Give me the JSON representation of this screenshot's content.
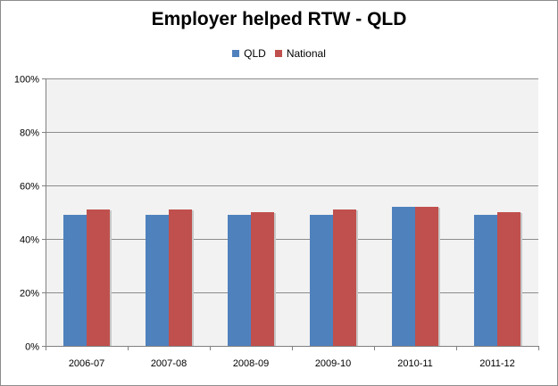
{
  "chart_data": {
    "type": "bar",
    "title": "Employer helped RTW - QLD",
    "xlabel": "",
    "ylabel": "",
    "categories": [
      "2006-07",
      "2007-08",
      "2008-09",
      "2009-10",
      "2010-11",
      "2011-12"
    ],
    "series": [
      {
        "name": "QLD",
        "color": "#4f81bd",
        "values": [
          49,
          49,
          49,
          49,
          52,
          49
        ]
      },
      {
        "name": "National",
        "color": "#c0504d",
        "values": [
          51,
          51,
          50,
          51,
          52,
          50
        ]
      }
    ],
    "ylim": [
      0,
      100
    ],
    "yticks": [
      0,
      20,
      40,
      60,
      80,
      100
    ],
    "ytick_labels": [
      "0%",
      "20%",
      "40%",
      "60%",
      "80%",
      "100%"
    ],
    "grid": true,
    "legend_position": "top",
    "plot_background": "#f2f2f2"
  }
}
